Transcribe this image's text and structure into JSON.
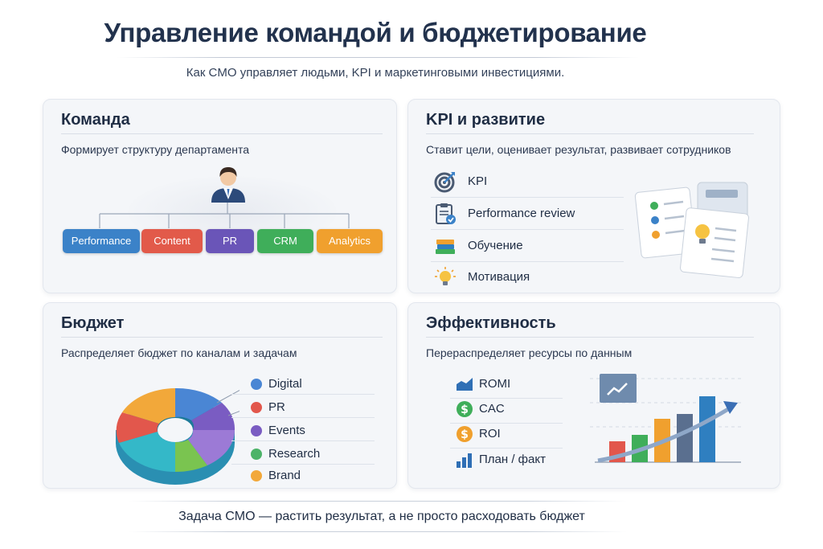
{
  "header": {
    "title": "Управление командой и бюджетирование",
    "subtitle": "Как CMO управляет людьми, KPI и маркетинговыми инвестициями."
  },
  "team": {
    "title": "Команда",
    "subtitle": "Формирует структуру департамента",
    "departments": [
      {
        "label": "Performance",
        "color": "#3b82c8"
      },
      {
        "label": "Content",
        "color": "#e25a4a"
      },
      {
        "label": "PR",
        "color": "#6a55b8"
      },
      {
        "label": "CRM",
        "color": "#3fae5a"
      },
      {
        "label": "Analytics",
        "color": "#f0a02e"
      }
    ]
  },
  "kpi": {
    "title": "KPI и развитие",
    "subtitle": "Ставит цели, оценивает результат, развивает сотрудников",
    "items": [
      {
        "label": "KPI",
        "icon": "target-icon"
      },
      {
        "label": "Performance review",
        "icon": "clipboard-icon"
      },
      {
        "label": "Обучение",
        "icon": "books-icon"
      },
      {
        "label": "Мотивация",
        "icon": "lightbulb-icon"
      }
    ]
  },
  "budget": {
    "title": "Бюджет",
    "subtitle": "Распределяет бюджет по каналам и задачам",
    "legend": [
      {
        "label": "Digital",
        "color": "#4a86d4"
      },
      {
        "label": "PR",
        "color": "#e2574c"
      },
      {
        "label": "Events",
        "color": "#7a5cc2"
      },
      {
        "label": "Research",
        "color": "#4cb368"
      },
      {
        "label": "Brand",
        "color": "#f2a83a"
      }
    ]
  },
  "efficiency": {
    "title": "Эффективность",
    "subtitle": "Перераспределяет ресурсы по данным",
    "items": [
      {
        "label": "ROMI",
        "icon": "chart-up-icon"
      },
      {
        "label": "CAC",
        "icon": "dollar-icon"
      },
      {
        "label": "ROI",
        "icon": "dollar-icon"
      },
      {
        "label": "План / факт",
        "icon": "bar-chart-icon"
      }
    ]
  },
  "footer": {
    "text": "Задача CMO — растить результат, а не просто расходовать бюджет"
  }
}
